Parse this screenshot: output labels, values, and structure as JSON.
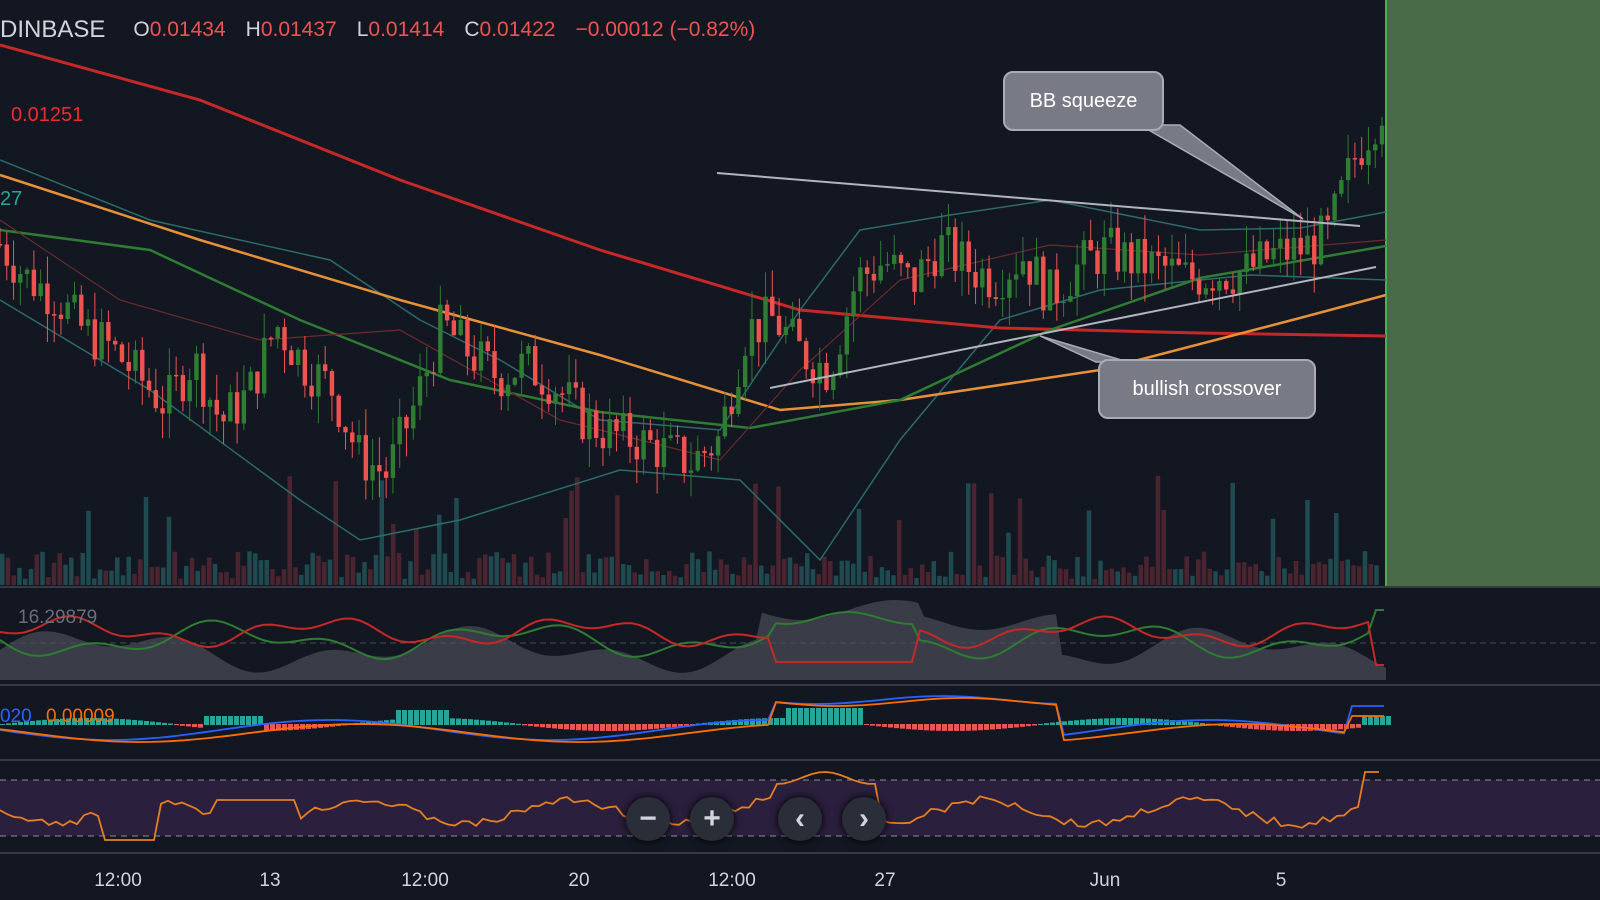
{
  "header": {
    "symbol": "DINBASE",
    "o_label": "O",
    "o_value": "0.01434",
    "h_label": "H",
    "h_value": "0.01437",
    "l_label": "L",
    "l_value": "0.01414",
    "c_label": "C",
    "c_value": "0.01422",
    "change": "−0.00012 (−0.82%)"
  },
  "price_tags": {
    "ma200": "0.01251",
    "partial": "27"
  },
  "annotations": {
    "bb_squeeze": "BB squeeze",
    "bullish_crossover": "bullish crossover"
  },
  "indicators": {
    "adx_value": "16.29879",
    "macd_value": "020",
    "signal_value": "0.00009"
  },
  "nav": {
    "zoom_out": "−",
    "zoom_in": "+",
    "prev": "‹",
    "next": "›"
  },
  "colors": {
    "background": "#131722",
    "up": "#26a69a",
    "up_candle": "#2e7d32",
    "down": "#ef5350",
    "ma200": "#c62828",
    "ma100": "#e69138",
    "ma50": "#2e7d32",
    "bb": "#2a6b6b",
    "highlight": "#4a6b48",
    "rsi_band": "#2a1f3d",
    "rsi_line": "#e67e22",
    "macd": "#2962ff",
    "signal": "#ff6d00"
  },
  "chart_data": {
    "type": "candlestick",
    "x_tick_labels": [
      "12:00",
      "13",
      "12:00",
      "20",
      "12:00",
      "27",
      "Jun",
      "5"
    ],
    "price_close_path": [
      0.0118,
      0.0112,
      0.0109,
      0.0103,
      0.01,
      0.0095,
      0.009,
      0.0098,
      0.0087,
      0.0092,
      0.0104,
      0.0097,
      0.0093,
      0.0081,
      0.0078,
      0.009,
      0.0104,
      0.0099,
      0.0095,
      0.0097,
      0.0094,
      0.0088,
      0.0085,
      0.0084,
      0.0082,
      0.008,
      0.0084,
      0.0103,
      0.0105,
      0.0099,
      0.0096,
      0.0112,
      0.0115,
      0.0111,
      0.0118,
      0.0114,
      0.0112,
      0.0116,
      0.0109,
      0.0114,
      0.0117,
      0.0115,
      0.0114,
      0.0112,
      0.0113,
      0.0113,
      0.0116,
      0.0117,
      0.0119,
      0.0133,
      0.0142
    ],
    "last_ohlc": {
      "open": 0.01434,
      "high": 0.01437,
      "low": 0.01414,
      "close": 0.01422
    },
    "ma200_label": 0.01251,
    "annotations": [
      "BB squeeze",
      "bullish crossover"
    ],
    "adx_value": 16.29879,
    "macd_signal_value": 9e-05
  }
}
